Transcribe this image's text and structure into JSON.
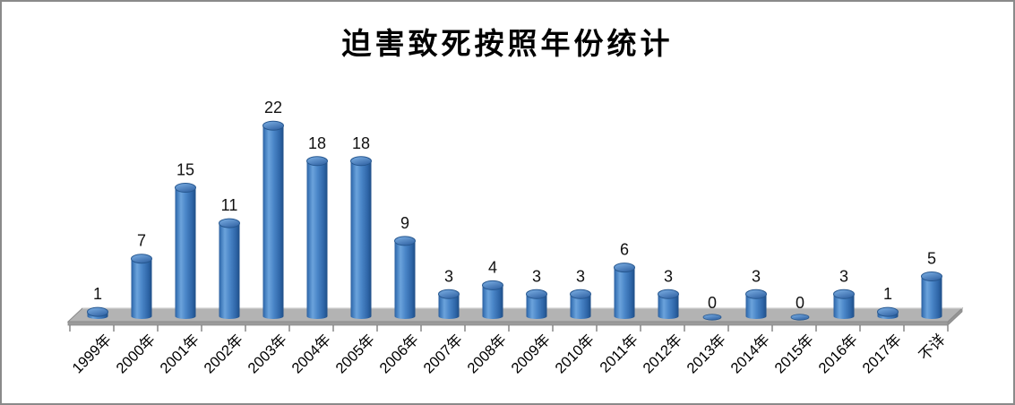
{
  "chart_data": {
    "type": "bar",
    "variant": "3d-cylinder",
    "title": "迫害致死按照年份统计",
    "categories": [
      "1999年",
      "2000年",
      "2001年",
      "2002年",
      "2003年",
      "2004年",
      "2005年",
      "2006年",
      "2007年",
      "2008年",
      "2009年",
      "2010年",
      "2011年",
      "2012年",
      "2013年",
      "2014年",
      "2015年",
      "2016年",
      "2017年",
      "不详"
    ],
    "values": [
      1,
      7,
      15,
      11,
      22,
      18,
      18,
      9,
      3,
      4,
      3,
      3,
      6,
      3,
      0,
      3,
      0,
      3,
      1,
      5
    ],
    "data_labels": [
      1,
      7,
      15,
      11,
      22,
      18,
      18,
      9,
      3,
      4,
      3,
      3,
      6,
      3,
      0,
      3,
      0,
      3,
      1,
      5
    ],
    "xlabel": "",
    "ylabel": "",
    "ylim": [
      0,
      22
    ],
    "grid": false,
    "legend": "none",
    "x_tick_rotation_deg": 45,
    "colors": {
      "bar_edge_dark": "#1f4e87",
      "bar_left_dark": "#2a5d9b",
      "bar_mid": "#4a86c8",
      "bar_highlight": "#6ba3dc",
      "bar_right_dark": "#2e66a8",
      "cap_light": "#7fb2e6",
      "cap_dark": "#3668a8",
      "cap_rim": "#26578f",
      "floor_top": "#b3b3b3",
      "floor_front": "#9b9b9b",
      "floor_side": "#949494",
      "floor_outline": "#8a8a8a",
      "floor_back_highlight": "#cfcfcf",
      "axis_tick": "#7f7f7f",
      "label_text": "#111111",
      "background": "#ffffff",
      "frame_border": "#8a8a8a"
    }
  }
}
